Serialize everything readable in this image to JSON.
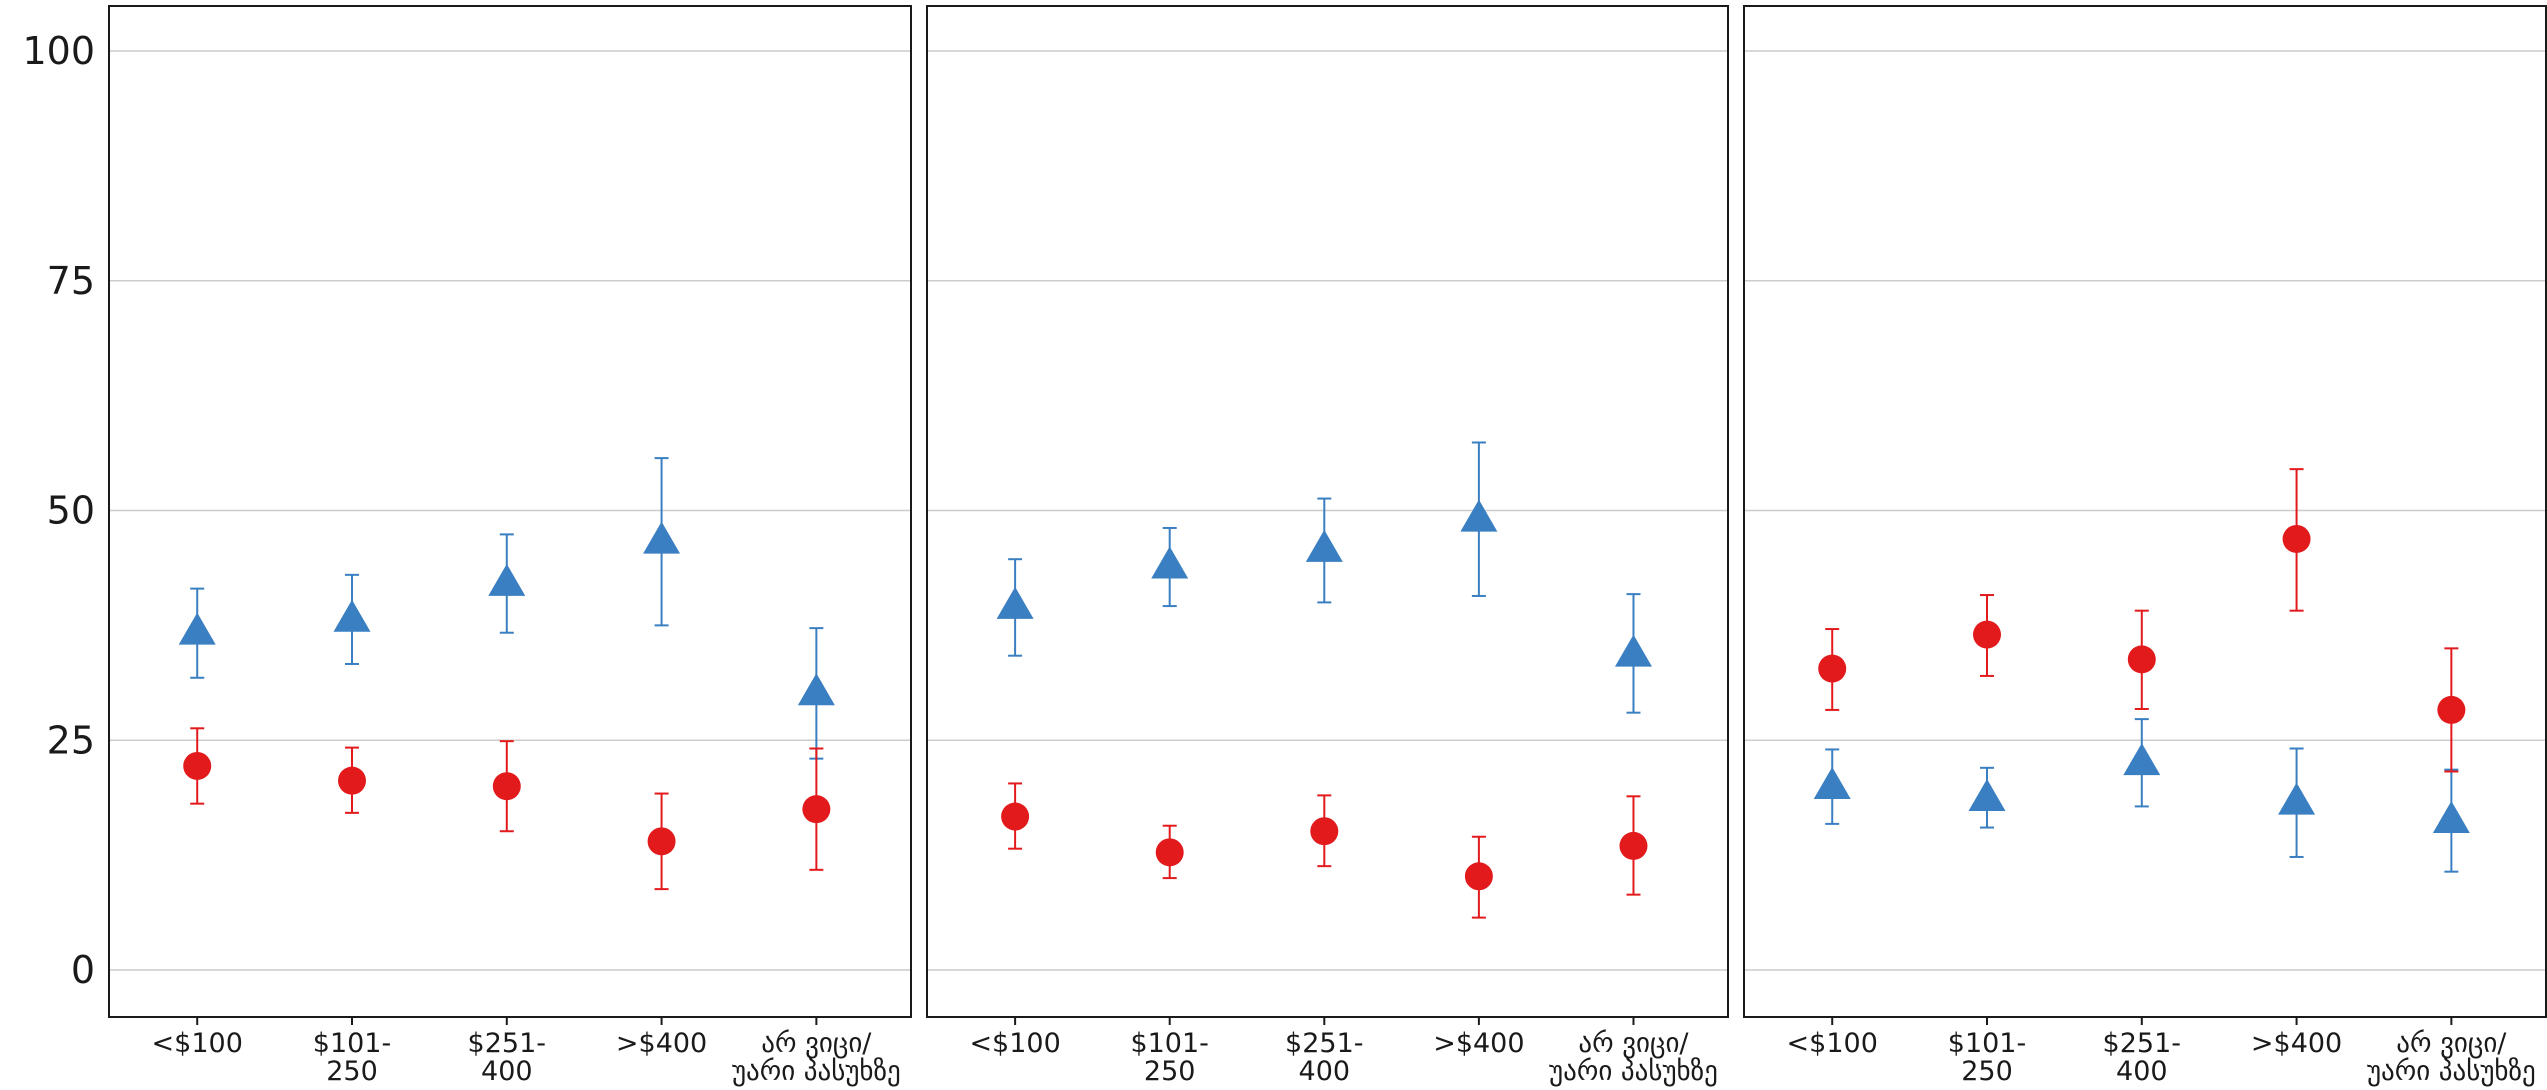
{
  "chart_data": {
    "type": "scatter",
    "subtype": "point-with-error-bars",
    "y_ticks": [
      "0",
      "25",
      "50",
      "75",
      "100"
    ],
    "ylim": [
      -5,
      105
    ],
    "grid": "horizontal",
    "categories": [
      [
        "<$100"
      ],
      [
        "$101-",
        "250"
      ],
      [
        "$251-",
        "400"
      ],
      [
        ">$400"
      ],
      [
        "არ ვიცი/",
        "უარი პასუხზე"
      ]
    ],
    "series_styles": [
      {
        "marker": "triangle",
        "color": "#3a7fc1"
      },
      {
        "marker": "circle",
        "color": "#e31a1c"
      }
    ],
    "panels": [
      {
        "series": [
          {
            "values": [
              36.8,
              38.2,
              42.1,
              46.7,
              30.2
            ],
            "lower": [
              31.8,
              33.3,
              36.7,
              37.5,
              23.0
            ],
            "upper": [
              41.5,
              43.0,
              47.4,
              55.7,
              37.2
            ]
          },
          {
            "values": [
              22.2,
              20.6,
              20.0,
              14.0,
              17.5
            ],
            "lower": [
              18.1,
              17.1,
              15.1,
              8.8,
              10.9
            ],
            "upper": [
              26.3,
              24.2,
              24.9,
              19.2,
              24.1
            ]
          }
        ]
      },
      {
        "series": [
          {
            "values": [
              39.6,
              44.0,
              45.8,
              49.1,
              34.4
            ],
            "lower": [
              34.2,
              39.6,
              40.0,
              40.7,
              28.0
            ],
            "upper": [
              44.7,
              48.1,
              51.3,
              57.4,
              40.9
            ]
          },
          {
            "values": [
              16.7,
              12.8,
              15.1,
              10.2,
              13.5
            ],
            "lower": [
              13.2,
              10.0,
              11.3,
              5.7,
              8.2
            ],
            "upper": [
              20.3,
              15.7,
              19.0,
              14.5,
              18.9
            ]
          }
        ]
      },
      {
        "series": [
          {
            "values": [
              20.0,
              18.7,
              22.6,
              18.3,
              16.3
            ],
            "lower": [
              15.9,
              15.5,
              17.8,
              12.3,
              10.7
            ],
            "upper": [
              24.0,
              22.0,
              27.3,
              24.1,
              21.8
            ]
          },
          {
            "values": [
              32.8,
              36.5,
              33.8,
              46.9,
              28.3
            ],
            "lower": [
              28.3,
              32.0,
              28.4,
              39.1,
              21.6
            ],
            "upper": [
              37.1,
              40.8,
              39.1,
              54.5,
              35.0
            ]
          }
        ]
      }
    ]
  }
}
